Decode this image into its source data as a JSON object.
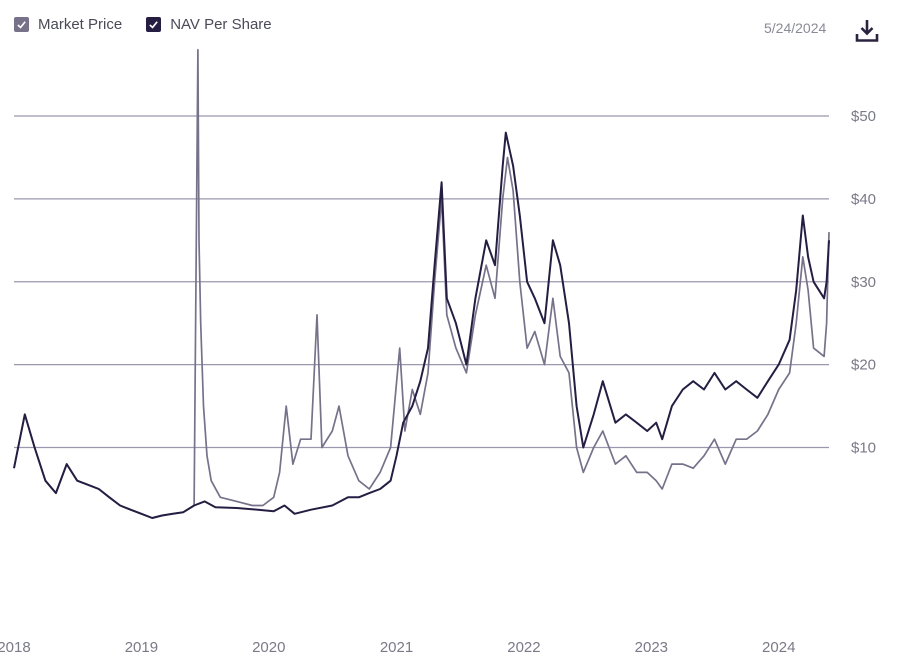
{
  "header": {
    "date": "5/24/2024",
    "download_icon": "download-icon"
  },
  "legend": [
    {
      "label": "Market Price",
      "checked": true,
      "color": "#77718a"
    },
    {
      "label": "NAV Per Share",
      "checked": true,
      "color": "#251d42"
    }
  ],
  "chart_data": {
    "type": "line",
    "title": "",
    "xlabel": "",
    "ylabel": "",
    "ylim": [
      -16,
      64
    ],
    "grid": true,
    "y_ticks": [
      {
        "value": 10,
        "label": "$10"
      },
      {
        "value": 20,
        "label": "$20"
      },
      {
        "value": 30,
        "label": "$30"
      },
      {
        "value": 40,
        "label": "$40"
      },
      {
        "value": 50,
        "label": "$50"
      }
    ],
    "x_ticks": [
      {
        "value": "2018-01-01",
        "label": "2018"
      },
      {
        "value": "2019-01-01",
        "label": "2019"
      },
      {
        "value": "2020-01-01",
        "label": "2020"
      },
      {
        "value": "2021-01-01",
        "label": "2021"
      },
      {
        "value": "2022-01-01",
        "label": "2022"
      },
      {
        "value": "2023-01-01",
        "label": "2023"
      },
      {
        "value": "2024-01-01",
        "label": "2024"
      }
    ],
    "xlim": [
      "2018-01-01",
      "2024-05-24"
    ],
    "series": [
      {
        "name": "Market Price",
        "color": "#77718a",
        "points": [
          [
            "2018-01-01",
            7.5
          ],
          [
            "2018-02-01",
            14
          ],
          [
            "2018-03-01",
            10
          ],
          [
            "2018-04-01",
            6
          ],
          [
            "2018-05-01",
            4.5
          ],
          [
            "2018-06-01",
            8
          ],
          [
            "2018-07-01",
            6
          ],
          [
            "2018-08-01",
            5.5
          ],
          [
            "2018-09-01",
            5
          ],
          [
            "2018-10-01",
            4
          ],
          [
            "2018-11-01",
            3
          ],
          [
            "2018-12-01",
            2.5
          ],
          [
            "2019-01-01",
            2
          ],
          [
            "2019-02-01",
            1.5
          ],
          [
            "2019-03-01",
            1.8
          ],
          [
            "2019-04-01",
            2
          ],
          [
            "2019-05-01",
            2.2
          ],
          [
            "2019-06-01",
            3
          ],
          [
            "2019-06-12",
            58
          ],
          [
            "2019-06-15",
            35
          ],
          [
            "2019-06-20",
            25
          ],
          [
            "2019-06-28",
            15
          ],
          [
            "2019-07-08",
            9
          ],
          [
            "2019-07-20",
            6
          ],
          [
            "2019-08-15",
            4
          ],
          [
            "2019-10-01",
            3.5
          ],
          [
            "2019-11-15",
            3
          ],
          [
            "2019-12-15",
            3
          ],
          [
            "2020-01-15",
            4
          ],
          [
            "2020-02-01",
            7
          ],
          [
            "2020-02-20",
            15
          ],
          [
            "2020-03-10",
            8
          ],
          [
            "2020-04-01",
            11
          ],
          [
            "2020-05-01",
            11
          ],
          [
            "2020-05-18",
            26
          ],
          [
            "2020-06-01",
            10
          ],
          [
            "2020-07-01",
            12
          ],
          [
            "2020-07-20",
            15
          ],
          [
            "2020-08-15",
            9
          ],
          [
            "2020-09-15",
            6
          ],
          [
            "2020-10-15",
            5
          ],
          [
            "2020-11-15",
            7
          ],
          [
            "2020-12-15",
            10
          ],
          [
            "2021-01-10",
            22
          ],
          [
            "2021-01-25",
            12
          ],
          [
            "2021-02-15",
            17
          ],
          [
            "2021-03-10",
            14
          ],
          [
            "2021-04-01",
            19
          ],
          [
            "2021-04-20",
            30
          ],
          [
            "2021-05-10",
            40
          ],
          [
            "2021-05-25",
            26
          ],
          [
            "2021-06-20",
            22
          ],
          [
            "2021-07-20",
            19
          ],
          [
            "2021-08-15",
            26
          ],
          [
            "2021-09-15",
            32
          ],
          [
            "2021-10-10",
            28
          ],
          [
            "2021-11-01",
            40
          ],
          [
            "2021-11-15",
            45
          ],
          [
            "2021-12-01",
            41
          ],
          [
            "2021-12-20",
            30
          ],
          [
            "2022-01-10",
            22
          ],
          [
            "2022-02-01",
            24
          ],
          [
            "2022-03-01",
            20
          ],
          [
            "2022-03-25",
            28
          ],
          [
            "2022-04-15",
            21
          ],
          [
            "2022-05-10",
            19
          ],
          [
            "2022-06-01",
            10
          ],
          [
            "2022-06-20",
            7
          ],
          [
            "2022-07-20",
            10
          ],
          [
            "2022-08-15",
            12
          ],
          [
            "2022-09-20",
            8
          ],
          [
            "2022-10-20",
            9
          ],
          [
            "2022-11-20",
            7
          ],
          [
            "2022-12-20",
            7
          ],
          [
            "2023-01-15",
            6
          ],
          [
            "2023-02-01",
            5
          ],
          [
            "2023-03-01",
            8
          ],
          [
            "2023-04-01",
            8
          ],
          [
            "2023-05-01",
            7.5
          ],
          [
            "2023-06-01",
            9
          ],
          [
            "2023-07-01",
            11
          ],
          [
            "2023-08-01",
            8
          ],
          [
            "2023-09-01",
            11
          ],
          [
            "2023-10-01",
            11
          ],
          [
            "2023-11-01",
            12
          ],
          [
            "2023-12-01",
            14
          ],
          [
            "2024-01-01",
            17
          ],
          [
            "2024-02-01",
            19
          ],
          [
            "2024-02-20",
            25
          ],
          [
            "2024-03-10",
            33
          ],
          [
            "2024-03-25",
            29
          ],
          [
            "2024-04-10",
            22
          ],
          [
            "2024-05-10",
            21
          ],
          [
            "2024-05-17",
            25
          ],
          [
            "2024-05-24",
            36
          ]
        ]
      },
      {
        "name": "NAV Per Share",
        "color": "#251d42",
        "points": [
          [
            "2018-01-01",
            7.5
          ],
          [
            "2018-02-01",
            14
          ],
          [
            "2018-03-01",
            10
          ],
          [
            "2018-04-01",
            6
          ],
          [
            "2018-05-01",
            4.5
          ],
          [
            "2018-06-01",
            8
          ],
          [
            "2018-07-01",
            6
          ],
          [
            "2018-08-01",
            5.5
          ],
          [
            "2018-09-01",
            5
          ],
          [
            "2018-10-01",
            4
          ],
          [
            "2018-11-01",
            3
          ],
          [
            "2018-12-01",
            2.5
          ],
          [
            "2019-01-01",
            2
          ],
          [
            "2019-02-01",
            1.5
          ],
          [
            "2019-03-01",
            1.8
          ],
          [
            "2019-04-01",
            2
          ],
          [
            "2019-05-01",
            2.2
          ],
          [
            "2019-06-01",
            3
          ],
          [
            "2019-07-01",
            3.5
          ],
          [
            "2019-08-01",
            2.8
          ],
          [
            "2019-10-01",
            2.7
          ],
          [
            "2019-12-01",
            2.5
          ],
          [
            "2020-01-15",
            2.3
          ],
          [
            "2020-02-15",
            3
          ],
          [
            "2020-03-15",
            2
          ],
          [
            "2020-05-01",
            2.5
          ],
          [
            "2020-07-01",
            3
          ],
          [
            "2020-08-15",
            4
          ],
          [
            "2020-09-15",
            4
          ],
          [
            "2020-10-15",
            4.5
          ],
          [
            "2020-11-15",
            5
          ],
          [
            "2020-12-15",
            6
          ],
          [
            "2021-01-01",
            9
          ],
          [
            "2021-01-20",
            13
          ],
          [
            "2021-02-15",
            15
          ],
          [
            "2021-03-10",
            18
          ],
          [
            "2021-04-01",
            22
          ],
          [
            "2021-04-20",
            32
          ],
          [
            "2021-05-10",
            42
          ],
          [
            "2021-05-25",
            28
          ],
          [
            "2021-06-20",
            25
          ],
          [
            "2021-07-20",
            20
          ],
          [
            "2021-08-15",
            28
          ],
          [
            "2021-09-15",
            35
          ],
          [
            "2021-10-10",
            32
          ],
          [
            "2021-11-01",
            44
          ],
          [
            "2021-11-10",
            48
          ],
          [
            "2021-12-01",
            44
          ],
          [
            "2021-12-20",
            38
          ],
          [
            "2022-01-10",
            30
          ],
          [
            "2022-02-01",
            28
          ],
          [
            "2022-03-01",
            25
          ],
          [
            "2022-03-25",
            35
          ],
          [
            "2022-04-15",
            32
          ],
          [
            "2022-05-10",
            25
          ],
          [
            "2022-06-01",
            15
          ],
          [
            "2022-06-20",
            10
          ],
          [
            "2022-07-20",
            14
          ],
          [
            "2022-08-15",
            18
          ],
          [
            "2022-09-20",
            13
          ],
          [
            "2022-10-20",
            14
          ],
          [
            "2022-11-20",
            13
          ],
          [
            "2022-12-20",
            12
          ],
          [
            "2023-01-15",
            13
          ],
          [
            "2023-02-01",
            11
          ],
          [
            "2023-03-01",
            15
          ],
          [
            "2023-04-01",
            17
          ],
          [
            "2023-05-01",
            18
          ],
          [
            "2023-06-01",
            17
          ],
          [
            "2023-07-01",
            19
          ],
          [
            "2023-08-01",
            17
          ],
          [
            "2023-09-01",
            18
          ],
          [
            "2023-10-01",
            17
          ],
          [
            "2023-11-01",
            16
          ],
          [
            "2023-12-01",
            18
          ],
          [
            "2024-01-01",
            20
          ],
          [
            "2024-02-01",
            23
          ],
          [
            "2024-02-20",
            29
          ],
          [
            "2024-03-10",
            38
          ],
          [
            "2024-03-25",
            33
          ],
          [
            "2024-04-10",
            30
          ],
          [
            "2024-05-10",
            28
          ],
          [
            "2024-05-17",
            30
          ],
          [
            "2024-05-24",
            35
          ]
        ]
      }
    ]
  }
}
